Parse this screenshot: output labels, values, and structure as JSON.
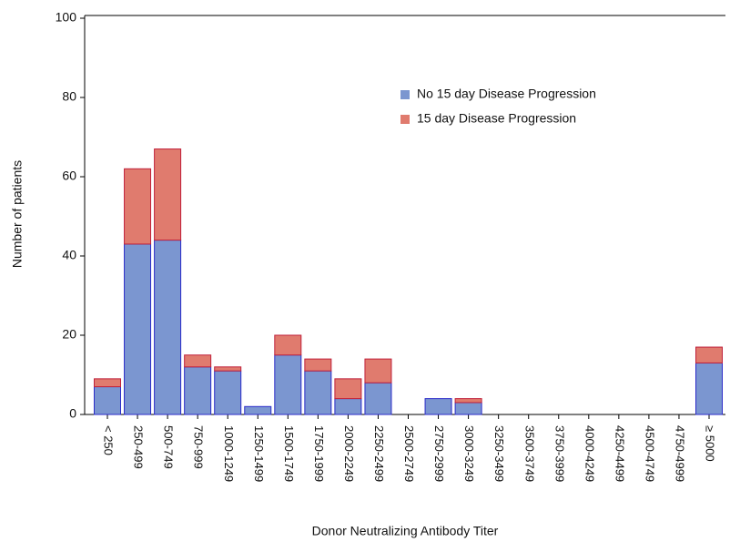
{
  "chart_data": {
    "type": "stacked_bar",
    "x_label": "Donor Neutralizing Antibody Titer",
    "y_label": "Number of  patients",
    "categories": [
      "< 250",
      "250-499",
      "500-749",
      "750-999",
      "1000-1249",
      "1250-1499",
      "1500-1749",
      "1750-1999",
      "2000-2249",
      "2250-2499",
      "2500-2749",
      "2750-2999",
      "3000-3249",
      "3250-3499",
      "3500-3749",
      "3750-3999",
      "4000-4249",
      "4250-4499",
      "4500-4749",
      "4750-4999",
      "≥ 5000"
    ],
    "series": [
      {
        "name": "No 15 day Disease Progression",
        "color": "#7b96d0",
        "stroke": "#2b2bc8",
        "values": [
          7,
          43,
          44,
          12,
          11,
          2,
          15,
          11,
          4,
          8,
          0,
          4,
          3,
          0,
          0,
          0,
          0,
          0,
          0,
          0,
          13
        ]
      },
      {
        "name": "15 day Disease Progression",
        "color": "#e07b6e",
        "stroke": "#c0203a",
        "values": [
          2,
          19,
          23,
          3,
          1,
          0,
          5,
          3,
          5,
          6,
          0,
          0,
          1,
          0,
          0,
          0,
          0,
          0,
          0,
          0,
          4
        ]
      }
    ],
    "ylim": [
      0,
      100
    ],
    "yticks": [
      0,
      20,
      40,
      60,
      80,
      100
    ],
    "grid": false
  }
}
